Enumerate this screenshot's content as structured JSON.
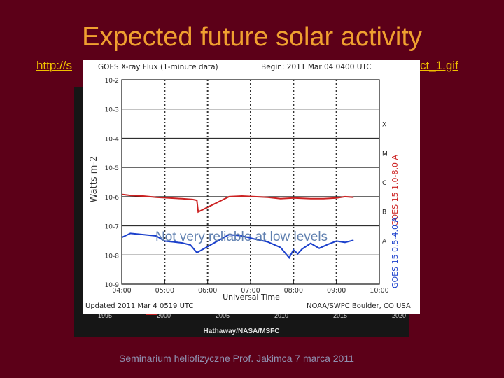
{
  "slide": {
    "title": "Expected future solar activity",
    "url_visible_start": "http://s",
    "url_visible_end": "ct_1.gif",
    "overlay_note": "Not very reliable at low levels",
    "footer": "Seminarium heliofizyczne Prof. Jakimca   7 marca 2011"
  },
  "background_plot": {
    "year_ticks": [
      "1995",
      "2000",
      "2005",
      "2010",
      "2015",
      "2020"
    ],
    "credit": "Hathaway/NASA/MSFC"
  },
  "goes_plot": {
    "header_left": "GOES X-ray Flux (1-minute data)",
    "header_right": "Begin: 2011 Mar 04 0400 UTC",
    "footer_left": "Updated 2011 Mar  4 0519 UTC",
    "footer_right": "NOAA/SWPC Boulder, CO USA",
    "right_label_red": "GOES 15 1.0-8.0 A",
    "right_label_blue": "GOES 15 0.5-4.0 A"
  },
  "chart_data": {
    "type": "line",
    "title": "GOES X-ray Flux (1-minute data)",
    "xlabel": "Universal Time",
    "ylabel": "Watts m-2",
    "y_scale": "log",
    "ylim": [
      1e-09,
      0.01
    ],
    "xlim": [
      "04:00",
      "10:00"
    ],
    "x_ticks": [
      "04:00",
      "05:00",
      "06:00",
      "07:00",
      "08:00",
      "09:00",
      "10:00"
    ],
    "y_ticks": [
      "10-9",
      "10-8",
      "10-7",
      "10-6",
      "10-5",
      "10-4",
      "10-3",
      "10-2"
    ],
    "flare_classes": [
      "A",
      "B",
      "C",
      "M",
      "X"
    ],
    "grid": true,
    "series": [
      {
        "name": "GOES 15 1.0-8.0 A",
        "color": "#cc2222",
        "x": [
          4.0,
          4.2,
          4.5,
          4.8,
          5.1,
          5.4,
          5.65,
          5.75,
          5.78,
          6.5,
          6.8,
          7.1,
          7.4,
          7.7,
          8.0,
          8.4,
          8.7,
          9.0,
          9.2,
          9.4
        ],
        "y": [
          1.2e-06,
          1.1e-06,
          1.05e-06,
          9.5e-07,
          9e-07,
          8.5e-07,
          8e-07,
          7.5e-07,
          3e-07,
          1e-06,
          1.05e-06,
          1e-06,
          9.5e-07,
          8.5e-07,
          9e-07,
          8.5e-07,
          8.5e-07,
          9e-07,
          1e-06,
          9.5e-07
        ]
      },
      {
        "name": "GOES 15 0.5-4.0 A",
        "color": "#1a3fcc",
        "x": [
          4.0,
          4.2,
          4.5,
          4.8,
          5.0,
          5.2,
          5.4,
          5.6,
          5.75,
          6.5,
          6.8,
          7.1,
          7.4,
          7.7,
          7.8,
          7.9,
          8.0,
          8.1,
          8.2,
          8.4,
          8.6,
          8.8,
          9.0,
          9.2,
          9.4
        ],
        "y": [
          4e-08,
          5.5e-08,
          5e-08,
          4.5e-08,
          3e-08,
          2.8e-08,
          2.6e-08,
          2.2e-08,
          1.2e-08,
          5e-08,
          4.5e-08,
          3.5e-08,
          2.8e-08,
          1.8e-08,
          1.2e-08,
          8e-09,
          1.5e-08,
          1.1e-08,
          1.6e-08,
          2.5e-08,
          1.7e-08,
          2.3e-08,
          3e-08,
          2.7e-08,
          3.2e-08
        ]
      }
    ]
  }
}
